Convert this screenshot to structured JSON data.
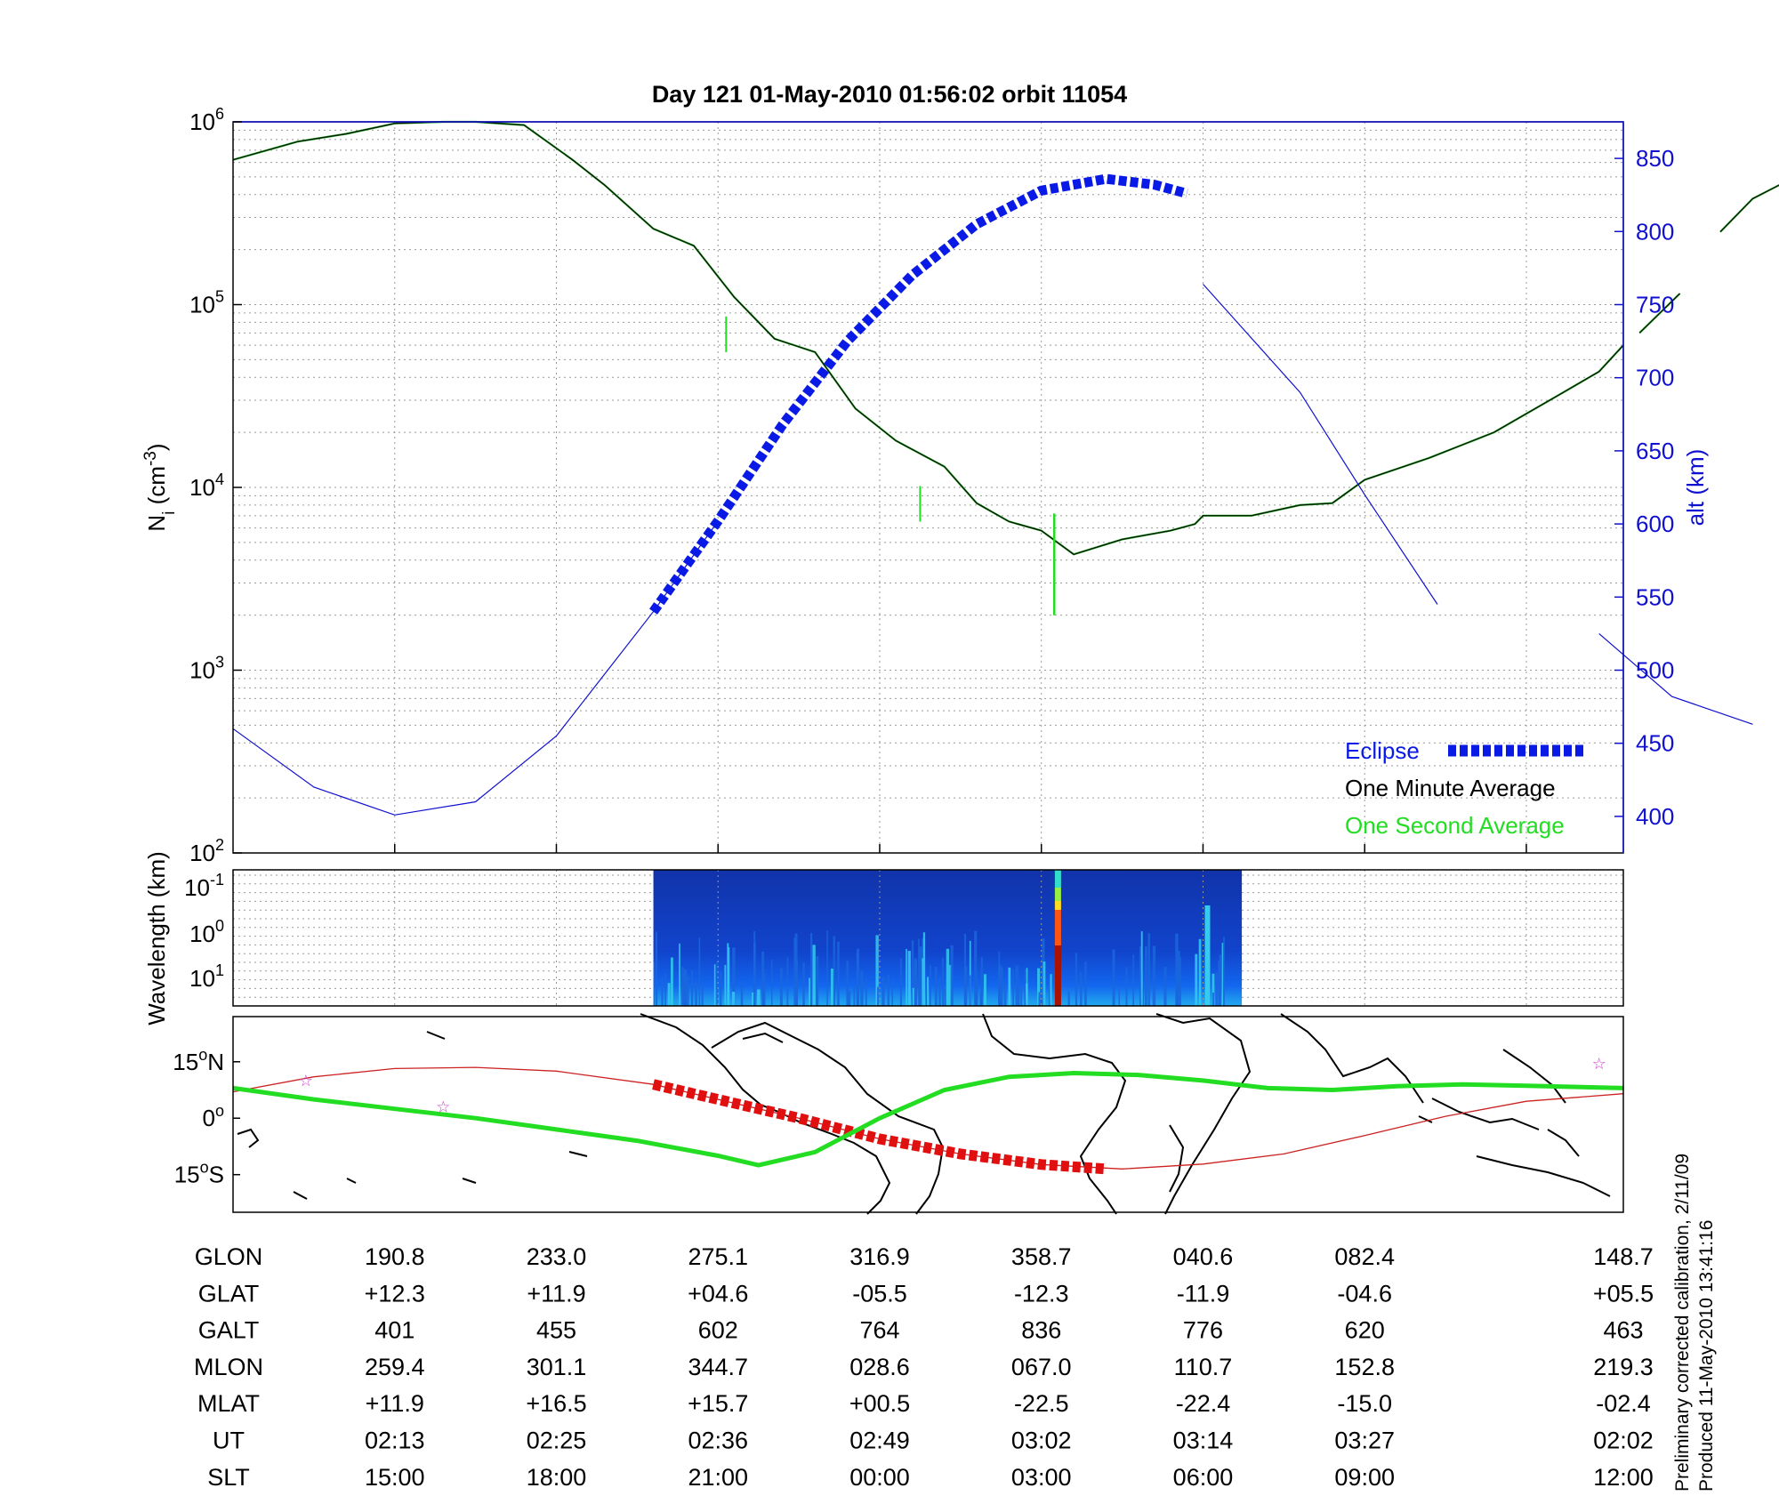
{
  "title": "Day 121   01-May-2010 01:56:02   orbit 11054",
  "colors": {
    "eclipse": "#0a1ae6",
    "one_minute": "#000000",
    "one_second": "#22dd22",
    "altitude": "#1010d0",
    "ground_track": "#cc2222",
    "magnetic_equator": "#22dd22",
    "star_marker": "#cc44cc"
  },
  "side_note": {
    "line1": "Preliminary corrected calibration, 2/11/09",
    "line2": "Produced 11-May-2010 13:41:16"
  },
  "chart_data": [
    {
      "type": "line",
      "panel": "ion-density-and-altitude",
      "ylabel_left": "N",
      "ylabel_left_sub": "i",
      "ylabel_left_unit": "(cm",
      "ylabel_left_exp": "-3",
      "ylabel_left_close": ")",
      "ylabel_right": "alt (km)",
      "yscale_left": "log",
      "ylim_left": [
        100,
        1000000
      ],
      "yticks_left": [
        {
          "base": "10",
          "exp": "2",
          "value": 100
        },
        {
          "base": "10",
          "exp": "3",
          "value": 1000
        },
        {
          "base": "10",
          "exp": "4",
          "value": 10000
        },
        {
          "base": "10",
          "exp": "5",
          "value": 100000
        },
        {
          "base": "10",
          "exp": "6",
          "value": 1000000
        }
      ],
      "ylim_right": [
        375,
        875
      ],
      "yticks_right": [
        "400",
        "450",
        "500",
        "550",
        "600",
        "650",
        "700",
        "750",
        "800",
        "850"
      ],
      "x_index_range": [
        -1,
        7.6
      ],
      "grid": true,
      "legend_position": "bottom-right",
      "legend": [
        {
          "label": "Eclipse",
          "color_key": "eclipse",
          "style": "thick-dashed"
        },
        {
          "label": "One Minute Average",
          "color_key": "one_minute",
          "style": "line"
        },
        {
          "label": "One Second Average",
          "color_key": "one_second",
          "style": "line"
        }
      ],
      "series": [
        {
          "name": "One Minute Average",
          "axis": "left",
          "segments": [
            [
              [
                -1.0,
                620000
              ],
              [
                -0.6,
                780000
              ],
              [
                -0.3,
                860000
              ],
              [
                0.0,
                980000
              ],
              [
                0.3,
                1000000
              ],
              [
                0.5,
                1000000
              ],
              [
                0.8,
                960000
              ],
              [
                1.1,
                620000
              ],
              [
                1.3,
                450000
              ],
              [
                1.6,
                260000
              ],
              [
                1.85,
                210000
              ],
              [
                2.1,
                110000
              ],
              [
                2.35,
                65000
              ],
              [
                2.6,
                55000
              ],
              [
                2.85,
                27000
              ],
              [
                3.1,
                18000
              ],
              [
                3.4,
                13000
              ],
              [
                3.6,
                8200
              ],
              [
                3.8,
                6500
              ],
              [
                4.0,
                5800
              ],
              [
                4.2,
                4300
              ],
              [
                4.5,
                5200
              ],
              [
                4.8,
                5800
              ],
              [
                4.95,
                6300
              ],
              [
                5.0,
                7000
              ],
              [
                5.3,
                7000
              ],
              [
                5.6,
                8000
              ],
              [
                5.8,
                8200
              ],
              [
                6.0,
                11000
              ],
              [
                6.4,
                14500
              ],
              [
                6.8,
                20000
              ],
              [
                7.2,
                32000
              ],
              [
                7.45,
                43000
              ],
              [
                7.6,
                60000
              ]
            ],
            [
              [
                7.7,
                70000
              ],
              [
                7.95,
                115000
              ]
            ],
            [
              [
                8.2,
                250000
              ],
              [
                8.4,
                380000
              ],
              [
                8.7,
                520000
              ],
              [
                8.9,
                570000
              ],
              [
                9.2,
                620000
              ]
            ]
          ]
        },
        {
          "name": "One Second Average",
          "axis": "left",
          "spikes": [
            {
              "x": 2.05,
              "y": 55000
            },
            {
              "x": 3.25,
              "y": 6500
            },
            {
              "x": 4.08,
              "y": 2000
            }
          ]
        },
        {
          "name": "alt (km)",
          "axis": "right",
          "segments": [
            [
              [
                -1.0,
                460
              ],
              [
                -0.5,
                420
              ],
              [
                0.0,
                401
              ],
              [
                0.5,
                410
              ],
              [
                1.0,
                455
              ],
              [
                1.6,
                540
              ],
              [
                2.0,
                602
              ]
            ],
            [
              [
                5.0,
                764
              ],
              [
                5.6,
                690
              ],
              [
                6.0,
                620
              ],
              [
                6.45,
                545
              ]
            ],
            [
              [
                7.45,
                525
              ],
              [
                7.9,
                482
              ],
              [
                8.4,
                463
              ]
            ]
          ]
        },
        {
          "name": "Eclipse",
          "axis": "right",
          "points": [
            [
              1.6,
              540
            ],
            [
              2.0,
              602
            ],
            [
              2.4,
              668
            ],
            [
              2.8,
              725
            ],
            [
              3.2,
              770
            ],
            [
              3.6,
              805
            ],
            [
              4.0,
              828
            ],
            [
              4.4,
              836
            ],
            [
              4.7,
              832
            ],
            [
              4.9,
              826
            ]
          ]
        }
      ]
    },
    {
      "type": "heatmap",
      "panel": "wavelength-spectrogram",
      "ylabel": "Wavelength (km)",
      "yticks": [
        {
          "base": "10",
          "exp": "-1"
        },
        {
          "base": "10",
          "exp": "0"
        },
        {
          "base": "10",
          "exp": "1"
        }
      ],
      "x_index_range": [
        -1,
        7.6
      ],
      "data_extent_index": [
        1.6,
        5.24
      ],
      "strong_band_index": 4.1,
      "colormap": "jet"
    },
    {
      "type": "line",
      "panel": "orbit-map",
      "yticks": [
        {
          "deg": "15",
          "hemi": "N",
          "value": 15
        },
        {
          "deg": "0",
          "hemi": "",
          "value": 0
        },
        {
          "deg": "15",
          "hemi": "S",
          "value": -15
        }
      ],
      "ylim": [
        -25,
        27
      ],
      "series": [
        {
          "name": "Ground track",
          "color_key": "ground_track",
          "points": [
            [
              -1.0,
              7
            ],
            [
              -0.5,
              11
            ],
            [
              0.0,
              13.2
            ],
            [
              0.5,
              13.5
            ],
            [
              1.0,
              12.5
            ],
            [
              1.6,
              9
            ],
            [
              2.0,
              5
            ],
            [
              2.5,
              0
            ],
            [
              3.0,
              -5.5
            ],
            [
              3.5,
              -9.5
            ],
            [
              4.0,
              -12.3
            ],
            [
              4.5,
              -13.5
            ],
            [
              5.0,
              -12.2
            ],
            [
              5.5,
              -9.5
            ],
            [
              6.0,
              -4.6
            ],
            [
              6.5,
              0.5
            ],
            [
              7.0,
              4.5
            ],
            [
              7.6,
              6.5
            ]
          ]
        },
        {
          "name": "Eclipse",
          "color_key": "ground_track",
          "points": [
            [
              1.6,
              9
            ],
            [
              2.0,
              5
            ],
            [
              2.5,
              0
            ],
            [
              3.0,
              -5.5
            ],
            [
              3.5,
              -9.5
            ],
            [
              4.0,
              -12.3
            ],
            [
              4.4,
              -13.5
            ]
          ]
        },
        {
          "name": "Magnetic equator",
          "color_key": "magnetic_equator",
          "points": [
            [
              -1.0,
              8
            ],
            [
              -0.5,
              5
            ],
            [
              0.0,
              2.5
            ],
            [
              0.5,
              0
            ],
            [
              1.0,
              -3
            ],
            [
              1.5,
              -6
            ],
            [
              2.0,
              -10
            ],
            [
              2.25,
              -12.5
            ],
            [
              2.6,
              -9
            ],
            [
              3.0,
              0
            ],
            [
              3.4,
              7.5
            ],
            [
              3.8,
              11
            ],
            [
              4.2,
              12
            ],
            [
              4.6,
              11.5
            ],
            [
              5.0,
              10
            ],
            [
              5.4,
              8
            ],
            [
              5.8,
              7.5
            ],
            [
              6.2,
              8.5
            ],
            [
              6.6,
              9
            ],
            [
              7.0,
              8.6
            ],
            [
              7.6,
              8
            ]
          ]
        }
      ],
      "stars": [
        [
          -0.55,
          10
        ],
        [
          0.3,
          3
        ],
        [
          7.45,
          14.5
        ]
      ]
    }
  ],
  "table": {
    "row_labels": [
      "GLON",
      "GLAT",
      "GALT",
      "MLON",
      "MLAT",
      "UT",
      "SLT"
    ],
    "columns": [
      [
        "190.8",
        "+12.3",
        "401",
        "259.4",
        "+11.9",
        "02:13",
        "15:00"
      ],
      [
        "233.0",
        "+11.9",
        "455",
        "301.1",
        "+16.5",
        "02:25",
        "18:00"
      ],
      [
        "275.1",
        "+04.6",
        "602",
        "344.7",
        "+15.7",
        "02:36",
        "21:00"
      ],
      [
        "316.9",
        "-05.5",
        "764",
        "028.6",
        "+00.5",
        "02:49",
        "00:00"
      ],
      [
        "358.7",
        "-12.3",
        "836",
        "067.0",
        "-22.5",
        "03:02",
        "03:00"
      ],
      [
        "040.6",
        "-11.9",
        "776",
        "110.7",
        "-22.4",
        "03:14",
        "06:00"
      ],
      [
        "082.4",
        "-04.6",
        "620",
        "152.8",
        "-15.0",
        "03:27",
        "09:00"
      ],
      [
        "148.7",
        "+05.5",
        "463",
        "219.3",
        "-02.4",
        "02:02",
        "12:00"
      ]
    ],
    "column_index": [
      0,
      1,
      2,
      3,
      4,
      5,
      6,
      7.6
    ]
  }
}
